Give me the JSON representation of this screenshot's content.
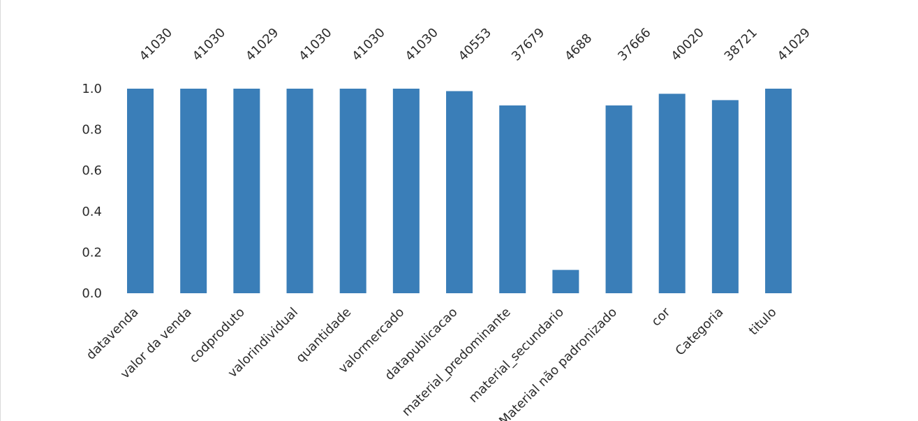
{
  "chart_data": {
    "type": "bar",
    "title": "",
    "xlabel": "",
    "ylabel": "",
    "categories": [
      "datavenda",
      "valor da venda",
      "codproduto",
      "valorindividual",
      "quantidade",
      "valormercado",
      "datapublicacao",
      "material_predominante",
      "material_secundario",
      "Material não padronizado",
      "cor",
      "Categoria",
      "titulo"
    ],
    "counts": [
      41030,
      41030,
      41029,
      41030,
      41030,
      41030,
      40553,
      37679,
      4688,
      37666,
      40020,
      38721,
      41029
    ],
    "total": 41030,
    "values": [
      1.0,
      1.0,
      1.0,
      1.0,
      1.0,
      1.0,
      0.988,
      0.918,
      0.114,
      0.918,
      0.975,
      0.944,
      1.0
    ],
    "ylim": [
      0,
      1.0
    ],
    "yticks": [
      "0.0",
      "0.2",
      "0.4",
      "0.6",
      "0.8",
      "1.0"
    ],
    "grid": false,
    "bar_color": "#3a7eb8"
  }
}
